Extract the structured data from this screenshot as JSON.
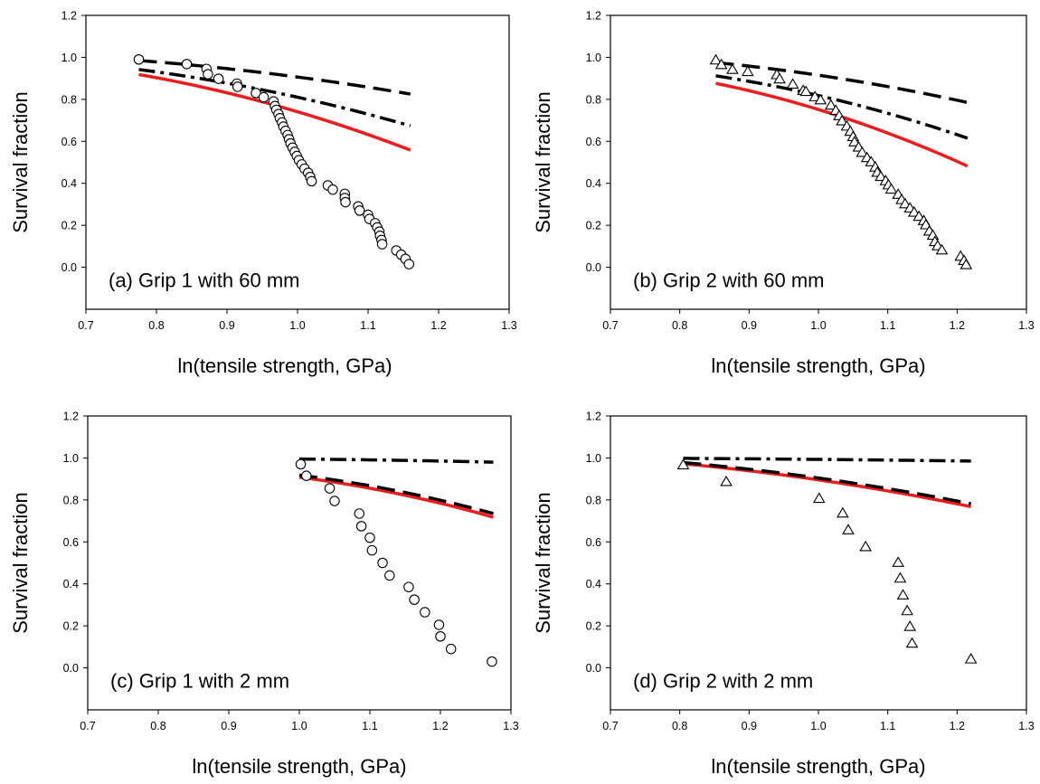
{
  "colors": {
    "model_red": "#ee1c1c",
    "model_black": "#000000",
    "frame": "#000000"
  },
  "chart_data": [
    {
      "type": "scatter",
      "annotation": "(a) Grip 1 with 60 mm",
      "xlabel": "ln(tensile strength, GPa)",
      "ylabel": "Survival fraction",
      "xlim": [
        0.7,
        1.3
      ],
      "ylim": [
        -0.2,
        1.2
      ],
      "x_ticks": [
        "0.7",
        "0.8",
        "0.9",
        "1.0",
        "1.1",
        "1.2",
        "1.3"
      ],
      "y_ticks": [
        "0.0",
        "0.2",
        "0.4",
        "0.6",
        "0.8",
        "1.0",
        "1.2"
      ],
      "grid": false,
      "legend": "none",
      "markers": "circle",
      "points": [
        [
          0.775,
          0.99
        ],
        [
          0.843,
          0.968
        ],
        [
          0.871,
          0.945
        ],
        [
          0.873,
          0.92
        ],
        [
          0.888,
          0.898
        ],
        [
          0.914,
          0.875
        ],
        [
          0.915,
          0.86
        ],
        [
          0.941,
          0.83
        ],
        [
          0.952,
          0.81
        ],
        [
          0.966,
          0.79
        ],
        [
          0.968,
          0.768
        ],
        [
          0.97,
          0.75
        ],
        [
          0.973,
          0.73
        ],
        [
          0.975,
          0.71
        ],
        [
          0.978,
          0.69
        ],
        [
          0.98,
          0.67
        ],
        [
          0.983,
          0.65
        ],
        [
          0.986,
          0.63
        ],
        [
          0.988,
          0.61
        ],
        [
          0.99,
          0.59
        ],
        [
          0.993,
          0.57
        ],
        [
          0.996,
          0.55
        ],
        [
          0.999,
          0.53
        ],
        [
          1.002,
          0.51
        ],
        [
          1.006,
          0.49
        ],
        [
          1.01,
          0.47
        ],
        [
          1.015,
          0.45
        ],
        [
          1.018,
          0.43
        ],
        [
          1.02,
          0.41
        ],
        [
          1.043,
          0.39
        ],
        [
          1.05,
          0.37
        ],
        [
          1.067,
          0.35
        ],
        [
          1.067,
          0.33
        ],
        [
          1.068,
          0.31
        ],
        [
          1.086,
          0.29
        ],
        [
          1.088,
          0.27
        ],
        [
          1.1,
          0.25
        ],
        [
          1.102,
          0.23
        ],
        [
          1.11,
          0.21
        ],
        [
          1.113,
          0.19
        ],
        [
          1.116,
          0.17
        ],
        [
          1.117,
          0.15
        ],
        [
          1.119,
          0.13
        ],
        [
          1.12,
          0.11
        ],
        [
          1.14,
          0.08
        ],
        [
          1.147,
          0.06
        ],
        [
          1.153,
          0.04
        ],
        [
          1.158,
          0.015
        ]
      ],
      "series": [
        {
          "style": "red-solid",
          "x": [
            0.775,
            1.16
          ],
          "y": [
            0.918,
            0.558
          ]
        },
        {
          "style": "black-dashdot",
          "x": [
            0.775,
            1.16
          ],
          "y": [
            0.942,
            0.674
          ]
        },
        {
          "style": "black-dashed",
          "x": [
            0.775,
            1.16
          ],
          "y": [
            0.985,
            0.825
          ]
        }
      ]
    },
    {
      "type": "scatter",
      "annotation": "(b) Grip 2 with 60 mm",
      "xlabel": "ln(tensile strength, GPa)",
      "ylabel": "Survival fraction",
      "xlim": [
        0.7,
        1.3
      ],
      "ylim": [
        -0.2,
        1.2
      ],
      "x_ticks": [
        "0.7",
        "0.8",
        "0.9",
        "1.0",
        "1.1",
        "1.2",
        "1.3"
      ],
      "y_ticks": [
        "0.0",
        "0.2",
        "0.4",
        "0.6",
        "0.8",
        "1.0",
        "1.2"
      ],
      "grid": false,
      "legend": "none",
      "markers": "triangle",
      "points": [
        [
          0.852,
          0.985
        ],
        [
          0.86,
          0.963
        ],
        [
          0.876,
          0.94
        ],
        [
          0.898,
          0.93
        ],
        [
          0.94,
          0.915
        ],
        [
          0.944,
          0.895
        ],
        [
          0.963,
          0.87
        ],
        [
          0.978,
          0.84
        ],
        [
          0.982,
          0.835
        ],
        [
          0.995,
          0.81
        ],
        [
          1.003,
          0.795
        ],
        [
          1.018,
          0.77
        ],
        [
          1.025,
          0.745
        ],
        [
          1.03,
          0.72
        ],
        [
          1.034,
          0.695
        ],
        [
          1.041,
          0.67
        ],
        [
          1.046,
          0.645
        ],
        [
          1.05,
          0.62
        ],
        [
          1.052,
          0.595
        ],
        [
          1.058,
          0.57
        ],
        [
          1.063,
          0.545
        ],
        [
          1.07,
          0.52
        ],
        [
          1.076,
          0.5
        ],
        [
          1.082,
          0.475
        ],
        [
          1.085,
          0.45
        ],
        [
          1.09,
          0.43
        ],
        [
          1.097,
          0.41
        ],
        [
          1.101,
          0.39
        ],
        [
          1.105,
          0.37
        ],
        [
          1.115,
          0.345
        ],
        [
          1.12,
          0.32
        ],
        [
          1.125,
          0.3
        ],
        [
          1.132,
          0.28
        ],
        [
          1.138,
          0.26
        ],
        [
          1.145,
          0.24
        ],
        [
          1.152,
          0.22
        ],
        [
          1.155,
          0.2
        ],
        [
          1.16,
          0.17
        ],
        [
          1.165,
          0.15
        ],
        [
          1.168,
          0.12
        ],
        [
          1.172,
          0.1
        ],
        [
          1.178,
          0.08
        ],
        [
          1.205,
          0.05
        ],
        [
          1.21,
          0.03
        ],
        [
          1.213,
          0.01
        ]
      ],
      "series": [
        {
          "style": "red-solid",
          "x": [
            0.852,
            1.215
          ],
          "y": [
            0.876,
            0.482
          ]
        },
        {
          "style": "black-dashdot",
          "x": [
            0.852,
            1.215
          ],
          "y": [
            0.912,
            0.615
          ]
        },
        {
          "style": "black-dashed",
          "x": [
            0.852,
            1.215
          ],
          "y": [
            0.975,
            0.785
          ]
        }
      ]
    },
    {
      "type": "scatter",
      "annotation": "(c) Grip 1 with 2 mm",
      "xlabel": "ln(tensile strength, GPa)",
      "ylabel": "Survival fraction",
      "xlim": [
        0.7,
        1.3
      ],
      "ylim": [
        -0.2,
        1.2
      ],
      "x_ticks": [
        "0.7",
        "0.8",
        "0.9",
        "1.0",
        "1.1",
        "1.2",
        "1.3"
      ],
      "y_ticks": [
        "0.0",
        "0.2",
        "0.4",
        "0.6",
        "0.8",
        "1.0",
        "1.2"
      ],
      "grid": false,
      "legend": "none",
      "markers": "circle",
      "points": [
        [
          1.002,
          0.97
        ],
        [
          1.01,
          0.915
        ],
        [
          1.043,
          0.855
        ],
        [
          1.05,
          0.795
        ],
        [
          1.085,
          0.735
        ],
        [
          1.088,
          0.675
        ],
        [
          1.1,
          0.62
        ],
        [
          1.103,
          0.56
        ],
        [
          1.118,
          0.5
        ],
        [
          1.128,
          0.44
        ],
        [
          1.155,
          0.385
        ],
        [
          1.163,
          0.325
        ],
        [
          1.178,
          0.265
        ],
        [
          1.198,
          0.205
        ],
        [
          1.2,
          0.15
        ],
        [
          1.215,
          0.09
        ],
        [
          1.273,
          0.03
        ]
      ],
      "series": [
        {
          "style": "red-solid",
          "x": [
            1.0,
            1.275
          ],
          "y": [
            0.908,
            0.718
          ]
        },
        {
          "style": "black-dashed",
          "x": [
            1.0,
            1.275
          ],
          "y": [
            0.918,
            0.735
          ]
        },
        {
          "style": "black-dashdot",
          "x": [
            1.0,
            1.275
          ],
          "y": [
            0.995,
            0.98
          ]
        }
      ]
    },
    {
      "type": "scatter",
      "annotation": "(d) Grip 2 with 2 mm",
      "xlabel": "ln(tensile strength, GPa)",
      "ylabel": "Survival fraction",
      "xlim": [
        0.7,
        1.3
      ],
      "ylim": [
        -0.2,
        1.2
      ],
      "x_ticks": [
        "0.7",
        "0.8",
        "0.9",
        "1.0",
        "1.1",
        "1.2",
        "1.3"
      ],
      "y_ticks": [
        "0.0",
        "0.2",
        "0.4",
        "0.6",
        "0.8",
        "1.0",
        "1.2"
      ],
      "grid": false,
      "legend": "none",
      "markers": "triangle",
      "points": [
        [
          0.805,
          0.965
        ],
        [
          0.867,
          0.885
        ],
        [
          1.001,
          0.805
        ],
        [
          1.035,
          0.735
        ],
        [
          1.043,
          0.655
        ],
        [
          1.068,
          0.575
        ],
        [
          1.115,
          0.5
        ],
        [
          1.118,
          0.425
        ],
        [
          1.122,
          0.345
        ],
        [
          1.128,
          0.27
        ],
        [
          1.132,
          0.195
        ],
        [
          1.135,
          0.115
        ],
        [
          1.22,
          0.04
        ]
      ],
      "series": [
        {
          "style": "red-solid",
          "x": [
            0.805,
            1.22
          ],
          "y": [
            0.972,
            0.768
          ]
        },
        {
          "style": "black-dashed",
          "x": [
            0.805,
            1.22
          ],
          "y": [
            0.978,
            0.782
          ]
        },
        {
          "style": "black-dashdot",
          "x": [
            0.805,
            1.22
          ],
          "y": [
            0.998,
            0.985
          ]
        }
      ]
    }
  ]
}
